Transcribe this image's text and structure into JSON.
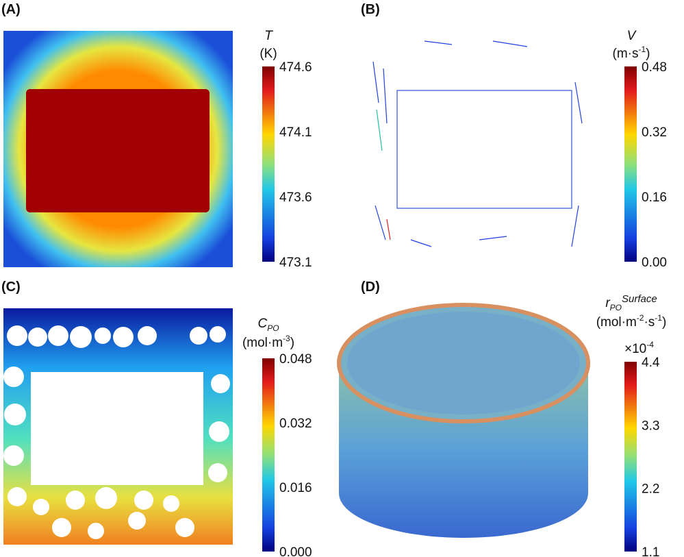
{
  "panels": [
    {
      "label": "(A)",
      "symbol": "T",
      "unit": [
        "(K)"
      ],
      "ticks": [
        "474.6",
        "474.1",
        "473.6",
        "473.1"
      ]
    },
    {
      "label": "(B)",
      "symbol": "V",
      "unit": [
        "(m·s",
        "-1",
        ")"
      ],
      "ticks": [
        "0.48",
        "0.32",
        "0.16",
        "0.00"
      ]
    },
    {
      "label": "(C)",
      "symbol": "C",
      "symbol_sub": "PO",
      "unit": [
        "(mol·m",
        "-3",
        ")"
      ],
      "ticks": [
        "0.048",
        "0.032",
        "0.016",
        "0.000"
      ]
    },
    {
      "label": "(D)",
      "symbol": "r",
      "symbol_sub": "PO",
      "symbol_sup": "Surface",
      "unit": [
        "(mol·m",
        "-2",
        "·s",
        "-1",
        ")"
      ],
      "multiplier": [
        "×10",
        "-4"
      ],
      "ticks": [
        "4.4",
        "3.3",
        "2.2",
        "1.1"
      ]
    }
  ]
}
